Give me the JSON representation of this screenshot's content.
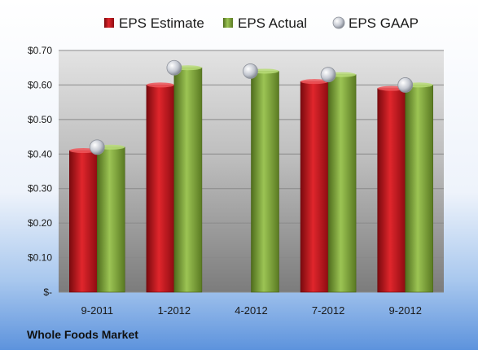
{
  "chart_data": {
    "type": "bar",
    "categories": [
      "9-2011",
      "1-2012",
      "4-2012",
      "7-2012",
      "9-2012"
    ],
    "series": [
      {
        "name": "EPS Estimate",
        "kind": "bar",
        "color": "#c0141c",
        "values": [
          0.41,
          0.6,
          null,
          0.61,
          0.59
        ]
      },
      {
        "name": "EPS Actual",
        "kind": "bar",
        "color": "#7fa43a",
        "values": [
          0.42,
          0.65,
          0.64,
          0.63,
          0.6
        ]
      },
      {
        "name": "EPS GAAP",
        "kind": "marker",
        "color": "#b8bcc6",
        "values": [
          0.42,
          0.65,
          0.64,
          0.63,
          0.6
        ]
      }
    ],
    "ylim": [
      0,
      0.7
    ],
    "yticks": [
      0,
      0.1,
      0.2,
      0.3,
      0.4,
      0.5,
      0.6,
      0.7
    ],
    "ytick_labels": [
      "$-",
      "$0.10",
      "$0.20",
      "$0.30",
      "$0.40",
      "$0.50",
      "$0.60",
      "$0.70"
    ],
    "grid": true,
    "legend_position": "top"
  },
  "footer": {
    "company": "Whole Foods Market"
  }
}
